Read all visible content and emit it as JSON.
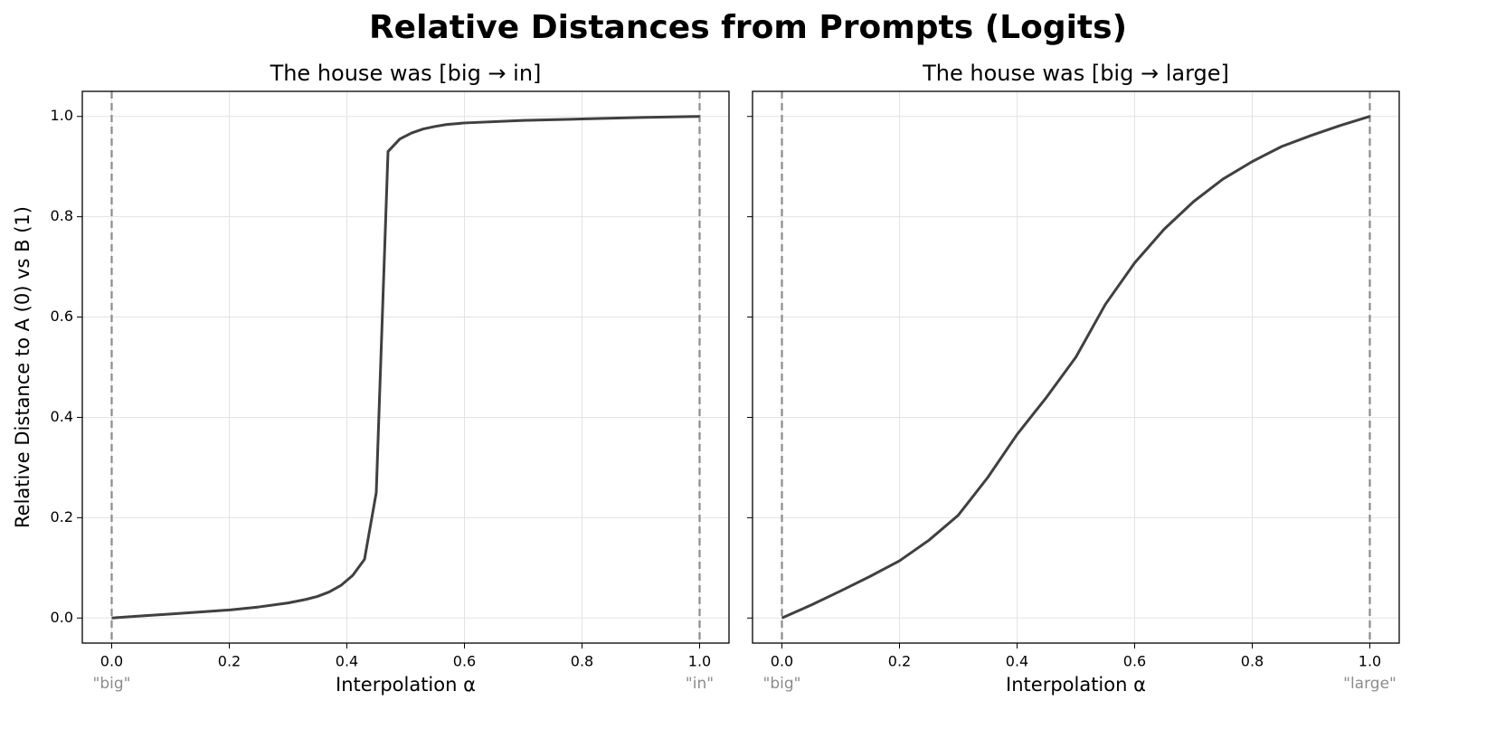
{
  "title": "Relative Distances from Prompts (Logits)",
  "chart_data": [
    {
      "type": "line",
      "title": "The house was [big → in]",
      "xlabel": "Interpolation α",
      "ylabel": "Relative Distance to A (0) vs B (1)",
      "x": [
        0,
        0.05,
        0.1,
        0.15,
        0.2,
        0.25,
        0.3,
        0.33,
        0.35,
        0.37,
        0.39,
        0.41,
        0.43,
        0.45,
        0.47,
        0.49,
        0.51,
        0.53,
        0.55,
        0.57,
        0.6,
        0.7,
        0.8,
        0.9,
        1.0
      ],
      "values": [
        0,
        0.004,
        0.008,
        0.012,
        0.016,
        0.022,
        0.03,
        0.037,
        0.043,
        0.052,
        0.065,
        0.085,
        0.117,
        0.25,
        0.93,
        0.955,
        0.967,
        0.975,
        0.98,
        0.984,
        0.987,
        0.992,
        0.995,
        0.998,
        1.0
      ],
      "color": "#404040",
      "grid": true,
      "xlim": [
        -0.05,
        1.05
      ],
      "xticks": [
        {
          "value": 0,
          "label": "0.0"
        },
        0.2,
        0.4,
        0.6,
        0.8,
        {
          "value": 1,
          "label": "1.0"
        }
      ],
      "ylim": [
        -0.05,
        1.05
      ],
      "yticks": [
        {
          "value": 0,
          "label": "0.0"
        },
        0.2,
        0.4,
        0.6,
        0.8,
        {
          "value": 1,
          "label": "1.0"
        }
      ],
      "vlines": [
        0,
        1
      ],
      "vline_color": "#8c8c8c",
      "annotations": [
        {
          "x": 0,
          "text": "\"big\""
        },
        {
          "x": 1,
          "text": "\"in\""
        }
      ]
    },
    {
      "type": "line",
      "title": "The house was [big → large]",
      "xlabel": "Interpolation α",
      "x": [
        0,
        0.05,
        0.1,
        0.15,
        0.2,
        0.25,
        0.3,
        0.35,
        0.4,
        0.45,
        0.5,
        0.55,
        0.6,
        0.65,
        0.7,
        0.75,
        0.8,
        0.85,
        0.9,
        0.95,
        1.0
      ],
      "values": [
        0,
        0.026,
        0.054,
        0.083,
        0.114,
        0.155,
        0.205,
        0.28,
        0.366,
        0.44,
        0.52,
        0.625,
        0.708,
        0.775,
        0.83,
        0.875,
        0.91,
        0.94,
        0.962,
        0.982,
        1.0
      ],
      "color": "#404040",
      "grid": true,
      "xlim": [
        -0.05,
        1.05
      ],
      "xticks": [
        {
          "value": 0,
          "label": "0.0"
        },
        0.2,
        0.4,
        0.6,
        0.8,
        {
          "value": 1,
          "label": "1.0"
        }
      ],
      "ylim": [
        -0.05,
        1.05
      ],
      "yticks": [
        0,
        0.2,
        0.4,
        0.6,
        0.8,
        1
      ],
      "vlines": [
        0,
        1
      ],
      "vline_color": "#8c8c8c",
      "annotations": [
        {
          "x": 0,
          "text": "\"big\""
        },
        {
          "x": 1,
          "text": "\"large\""
        }
      ]
    }
  ]
}
